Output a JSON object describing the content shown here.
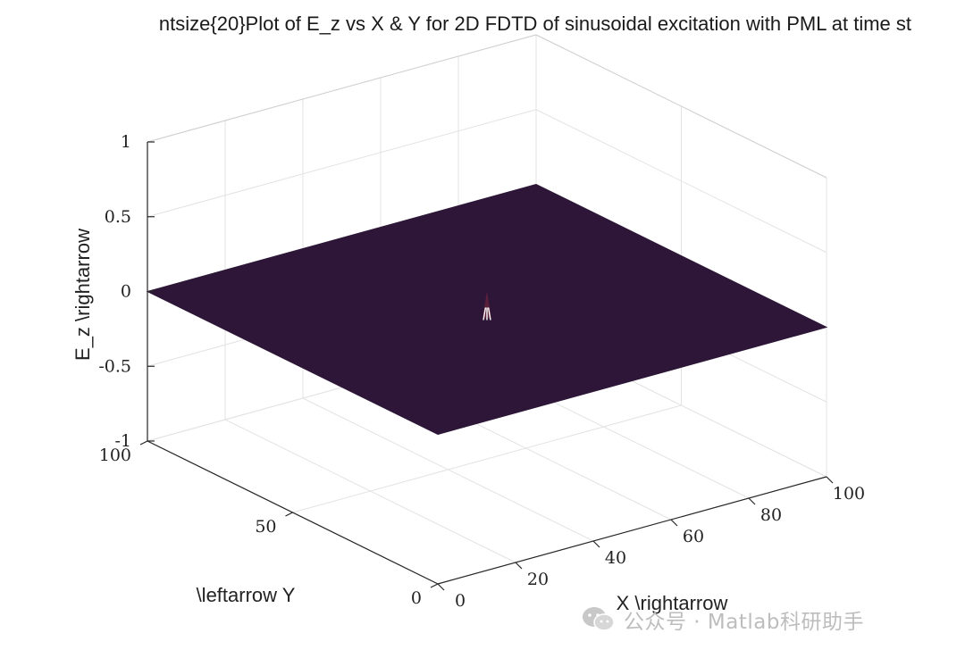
{
  "chart_data": {
    "type": "surface",
    "title": "ntsize{20}Plot of E_z vs X & Y for 2D FDTD of sinusoidal excitation with PML at time st",
    "xlabel": "X \\rightarrow",
    "ylabel": "\\leftarrow Y",
    "zlabel": "E_z \\rightarrow",
    "xlim": [
      0,
      100
    ],
    "ylim": [
      0,
      100
    ],
    "zlim": [
      -1,
      1
    ],
    "x_ticks": [
      "0",
      "20",
      "40",
      "60",
      "80",
      "100"
    ],
    "y_ticks": [
      "0",
      "50",
      "100"
    ],
    "z_ticks": [
      "-1",
      "-0.5",
      "0",
      "0.5",
      "1"
    ],
    "grid": true,
    "surface_value": 0,
    "surface_color": "#2d1637",
    "peak": {
      "x": 50,
      "y": 50,
      "z_max": 0.12
    }
  },
  "watermark": {
    "text": "公众号 · Matlab科研助手",
    "icon": "wechat-icon"
  }
}
